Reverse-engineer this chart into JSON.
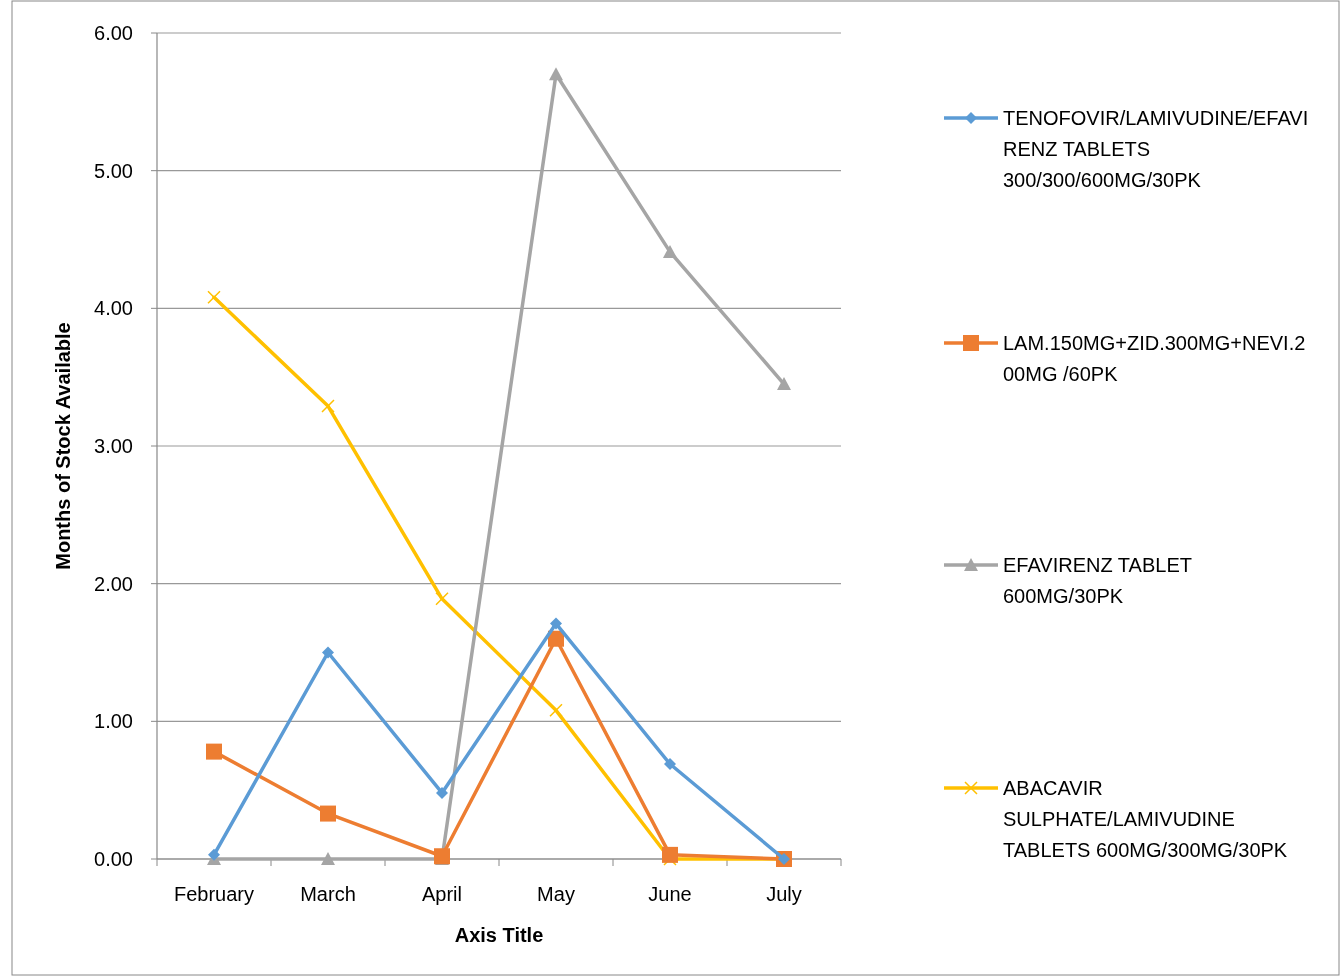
{
  "chart_data": {
    "type": "line",
    "xlabel": "Axis Title",
    "ylabel": "Months of Stock Available",
    "categories": [
      "February",
      "March",
      "April",
      "May",
      "June",
      "July"
    ],
    "ylim": [
      0,
      6
    ],
    "yticks": [
      {
        "value": 0,
        "label": "0.00"
      },
      {
        "value": 1,
        "label": "1.00"
      },
      {
        "value": 2,
        "label": "2.00"
      },
      {
        "value": 3,
        "label": "3.00"
      },
      {
        "value": 4,
        "label": "4.00"
      },
      {
        "value": 5,
        "label": "5.00"
      },
      {
        "value": 6,
        "label": "6.00"
      }
    ],
    "grid": "y",
    "legend": "right",
    "series": [
      {
        "name": "TENOFOVIR/LAMIVUDINE/EFAVIRENZ TABLETS 300/300/600MG/30PK",
        "color": "#5b9bd5",
        "marker": "diamond",
        "values": [
          0.03,
          1.5,
          0.48,
          1.71,
          0.69,
          0
        ]
      },
      {
        "name": "LAM.150MG+ZID.300MG+NEVI.200MG /60PK",
        "color": "#ed7d31",
        "marker": "square",
        "values": [
          0.78,
          0.33,
          0.02,
          1.6,
          0.03,
          0
        ]
      },
      {
        "name": "EFAVIRENZ TABLET 600MG/30PK",
        "color": "#a5a5a5",
        "marker": "triangle",
        "values": [
          0,
          0,
          0,
          5.7,
          4.41,
          3.45
        ]
      },
      {
        "name": "ABACAVIR SULPHATE/LAMIVUDINE TABLETS 600MG/300MG/30PK",
        "color": "#ffc000",
        "marker": "cross",
        "values": [
          4.08,
          3.29,
          1.89,
          1.08,
          0,
          0
        ]
      }
    ]
  }
}
